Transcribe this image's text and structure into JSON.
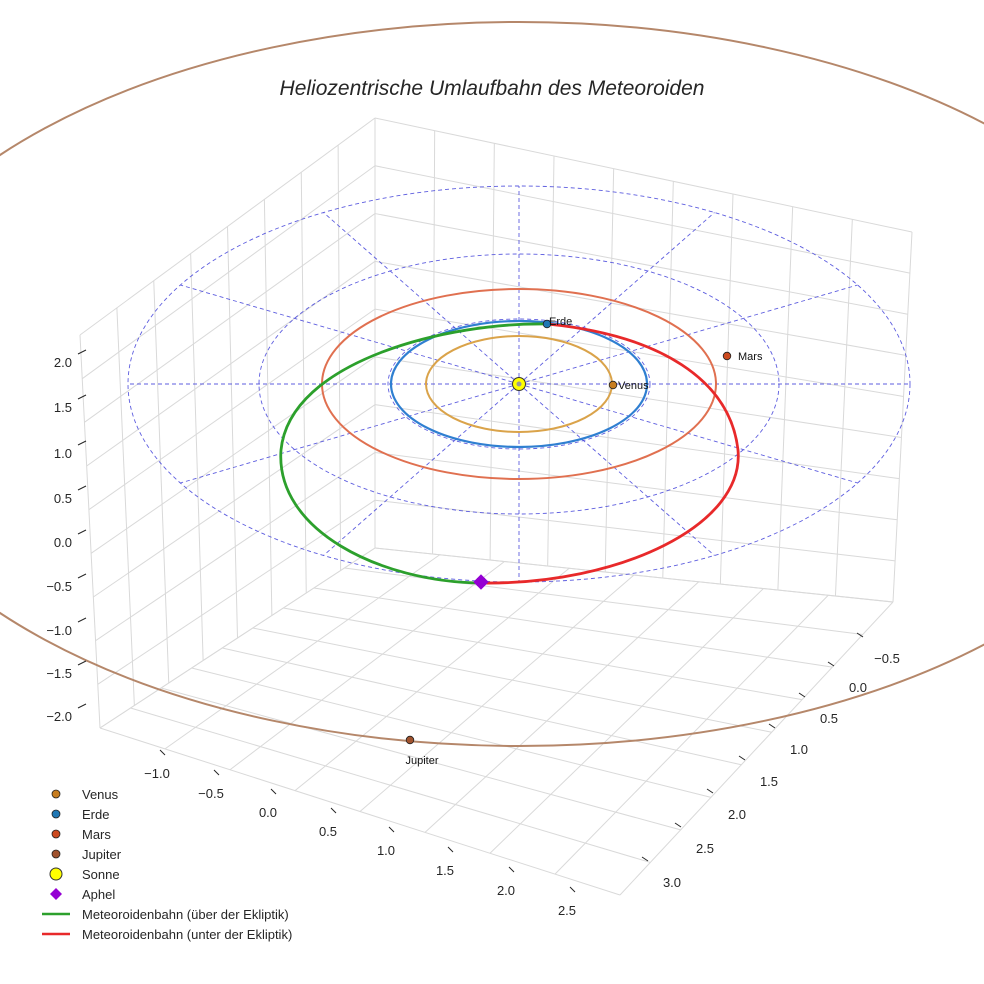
{
  "chart_data": {
    "type": "3d-orbit",
    "title": "Heliozentrische Umlaufbahn des Meteoroiden",
    "x_ticks": [
      "−1.0",
      "−0.5",
      "0.0",
      "0.5",
      "1.0",
      "1.5",
      "2.0",
      "2.5"
    ],
    "y_ticks": [
      "−0.5",
      "0.0",
      "0.5",
      "1.0",
      "1.5",
      "2.0",
      "2.5",
      "3.0"
    ],
    "z_ticks": [
      "2.0",
      "1.5",
      "1.0",
      "0.5",
      "0.0",
      "−0.5",
      "−1.0",
      "−1.5",
      "−2.0"
    ],
    "grid": true,
    "ecliptic_rings_au": [
      1,
      2,
      3
    ],
    "ecliptic_spokes": 12,
    "planets": [
      {
        "name": "Venus",
        "radius_au": 0.72,
        "color": "#b8860b",
        "orbit_color": "#daa34a",
        "marker_color": "#c77d1f"
      },
      {
        "name": "Erde",
        "radius_au": 1.0,
        "color": "#1f77b4",
        "orbit_color": "#2f7fd1",
        "marker_color": "#1f77b4"
      },
      {
        "name": "Mars",
        "radius_au": 1.52,
        "color": "#d45d2c",
        "orbit_color": "#e07050",
        "marker_color": "#cc4a1f"
      },
      {
        "name": "Jupiter",
        "radius_au": 5.2,
        "color": "#a0522d",
        "orbit_color": "#b5876a",
        "marker_color": "#a0522d"
      }
    ],
    "sun": {
      "name": "Sonne",
      "color": "#ffff00"
    },
    "aphel": {
      "name": "Aphel",
      "color": "#9400d3"
    },
    "meteoroid_orbit": {
      "above_label": "Meteoroidenbahn (über der Ekliptik)",
      "below_label": "Meteoroidenbahn (unter der Ekliptik)",
      "above_color": "#2ca02c",
      "below_color": "#e8292a"
    },
    "legend_placement": "bottom-left",
    "legend": [
      {
        "label": "Venus",
        "marker": "dot",
        "color": "#c77d1f"
      },
      {
        "label": "Erde",
        "marker": "dot",
        "color": "#1f77b4"
      },
      {
        "label": "Mars",
        "marker": "dot",
        "color": "#cc4a1f"
      },
      {
        "label": "Jupiter",
        "marker": "dot",
        "color": "#a0522d"
      },
      {
        "label": "Sonne",
        "marker": "sun",
        "color": "#ffff00"
      },
      {
        "label": "Aphel",
        "marker": "diamond",
        "color": "#9400d3"
      },
      {
        "label": "Meteoroidenbahn (über der Ekliptik)",
        "marker": "line",
        "color": "#2ca02c"
      },
      {
        "label": "Meteoroidenbahn (unter der Ekliptik)",
        "marker": "line",
        "color": "#e8292a"
      }
    ]
  }
}
